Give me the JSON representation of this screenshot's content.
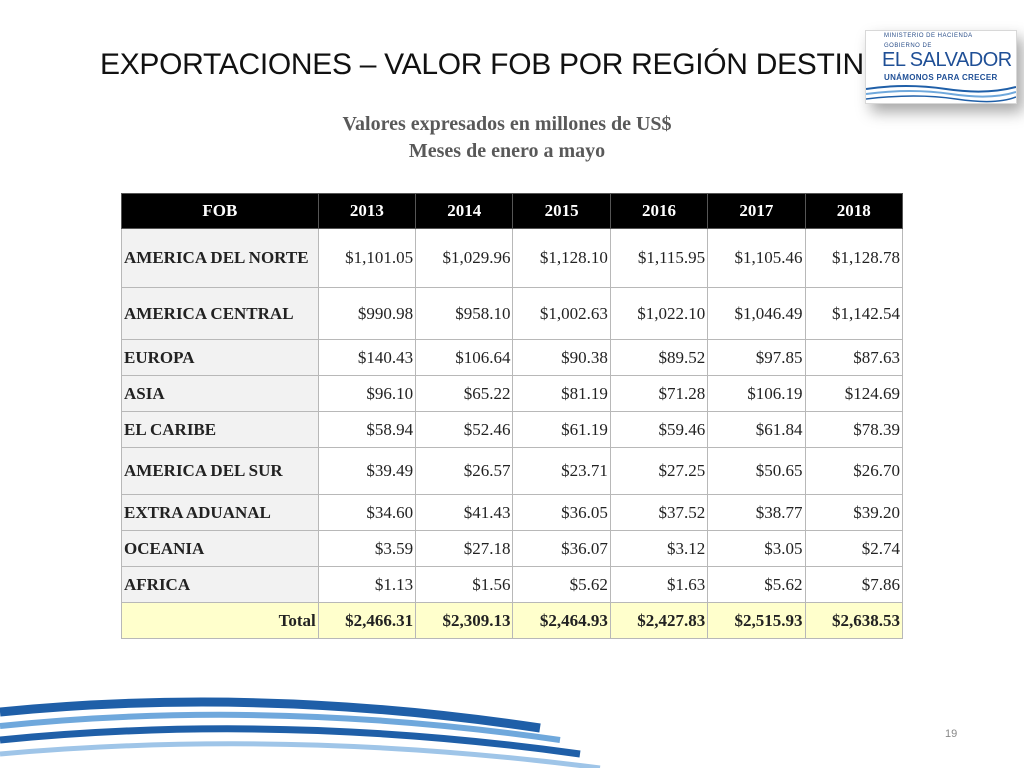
{
  "slide": {
    "title": "EXPORTACIONES –  VALOR FOB POR REGIÓN DESTINO",
    "subtitle_line1": "Valores expresados en millones de US$",
    "subtitle_line2": "Meses de enero a mayo",
    "page_number": "19"
  },
  "logo": {
    "line1": "MINISTERIO DE HACIENDA",
    "line2": "GOBIERNO DE",
    "line3": "EL SALVADOR",
    "line4": "UNÁMONOS PARA CRECER"
  },
  "colors": {
    "header_bg": "#000000",
    "total_row_bg": "#ffffcc",
    "swoosh_blue": "#1f5fa8",
    "swoosh_light": "#6fa8dc"
  },
  "table": {
    "headers": [
      "FOB",
      "2013",
      "2014",
      "2015",
      "2016",
      "2017",
      "2018"
    ],
    "rows": [
      {
        "region": "AMERICA DEL NORTE",
        "values": [
          "$1,101.05",
          "$1,029.96",
          "$1,128.10",
          "$1,115.95",
          "$1,105.46",
          "$1,128.78"
        ]
      },
      {
        "region": "AMERICA CENTRAL",
        "values": [
          "$990.98",
          "$958.10",
          "$1,002.63",
          "$1,022.10",
          "$1,046.49",
          "$1,142.54"
        ]
      },
      {
        "region": "EUROPA",
        "values": [
          "$140.43",
          "$106.64",
          "$90.38",
          "$89.52",
          "$97.85",
          "$87.63"
        ]
      },
      {
        "region": "ASIA",
        "values": [
          "$96.10",
          "$65.22",
          "$81.19",
          "$71.28",
          "$106.19",
          "$124.69"
        ]
      },
      {
        "region": "EL CARIBE",
        "values": [
          "$58.94",
          "$52.46",
          "$61.19",
          "$59.46",
          "$61.84",
          "$78.39"
        ]
      },
      {
        "region": "AMERICA DEL SUR",
        "values": [
          "$39.49",
          "$26.57",
          "$23.71",
          "$27.25",
          "$50.65",
          "$26.70"
        ]
      },
      {
        "region": "EXTRA ADUANAL",
        "values": [
          "$34.60",
          "$41.43",
          "$36.05",
          "$37.52",
          "$38.77",
          "$39.20"
        ]
      },
      {
        "region": "OCEANIA",
        "values": [
          "$3.59",
          "$27.18",
          "$36.07",
          "$3.12",
          "$3.05",
          "$2.74"
        ]
      },
      {
        "region": "AFRICA",
        "values": [
          "$1.13",
          "$1.56",
          "$5.62",
          "$1.63",
          "$5.62",
          "$7.86"
        ]
      }
    ],
    "total": {
      "label": "Total",
      "values": [
        "$2,466.31",
        "$2,309.13",
        "$2,464.93",
        "$2,427.83",
        "$2,515.93",
        "$2,638.53"
      ]
    }
  }
}
